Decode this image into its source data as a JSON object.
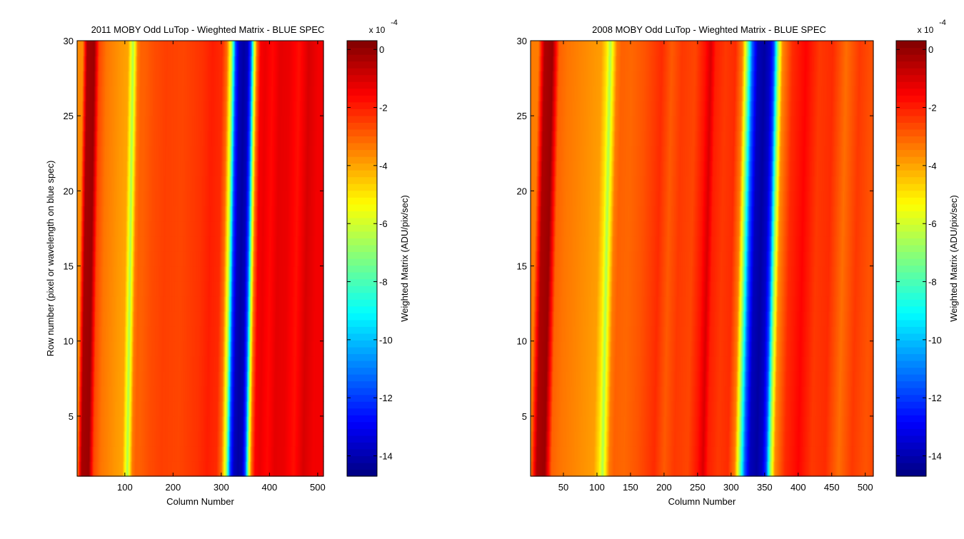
{
  "chart_data": [
    {
      "type": "heatmap",
      "title": "2011 MOBY Odd LuTop - Wieghted Matrix - BLUE SPEC",
      "xlabel": "Column Number",
      "ylabel": "Row number (pixel or wavelength on blue spec)",
      "xlim": [
        1,
        512
      ],
      "ylim": [
        1,
        30
      ],
      "xticks": [
        100,
        200,
        300,
        400,
        500
      ],
      "yticks": [
        5,
        10,
        15,
        20,
        25,
        30
      ],
      "colorbar": {
        "label": "Weighted Matrix (ADU/pix/sec)",
        "multiplier": "x 10",
        "exponent": "-4",
        "ticks": [
          0,
          -2,
          -4,
          -6,
          -8,
          -10,
          -12,
          -14
        ],
        "range": [
          -14.7,
          0.3
        ],
        "colormap": "jet"
      },
      "profile_x": [
        1,
        10,
        25,
        35,
        50,
        80,
        95,
        100,
        105,
        110,
        115,
        122,
        130,
        150,
        175,
        210,
        250,
        270,
        290,
        300,
        310,
        318,
        326,
        335,
        343,
        350,
        356,
        362,
        370,
        380,
        395,
        410,
        430,
        450,
        470,
        490,
        512
      ],
      "profile_values": [
        -3.6,
        -0.3,
        -0.1,
        -2.6,
        -3.3,
        -3.8,
        -4.0,
        -5.2,
        -6.6,
        -5.0,
        -3.4,
        -3.0,
        -3.0,
        -2.7,
        -2.5,
        -2.6,
        -2.3,
        -2.0,
        -2.2,
        -3.2,
        -6.5,
        -11.8,
        -13.8,
        -14.2,
        -13.8,
        -11.5,
        -6.5,
        -3.2,
        -1.5,
        -1.3,
        -1.7,
        -1.2,
        -1.3,
        -1.8,
        -1.0,
        -1.4,
        -1.4
      ],
      "skew_columns_over_rows": 12
    },
    {
      "type": "heatmap",
      "title": "2008 MOBY Odd LuTop - Wieghted Matrix - BLUE SPEC",
      "xlabel": "Column Number",
      "ylabel": "",
      "xlim": [
        1,
        512
      ],
      "ylim": [
        1,
        30
      ],
      "xticks": [
        50,
        100,
        150,
        200,
        250,
        300,
        350,
        400,
        450,
        500
      ],
      "yticks": [
        5,
        10,
        15,
        20,
        25,
        30
      ],
      "colorbar": {
        "label": "Weighted Matrix (ADU/pix/sec)",
        "multiplier": "x 10",
        "exponent": "-4",
        "ticks": [
          0,
          -2,
          -4,
          -6,
          -8,
          -10,
          -12,
          -14
        ],
        "range": [
          -14.7,
          0.3
        ],
        "colormap": "jet"
      },
      "profile_x": [
        1,
        10,
        22,
        32,
        45,
        70,
        95,
        103,
        108,
        112,
        118,
        125,
        140,
        160,
        185,
        200,
        215,
        235,
        250,
        258,
        265,
        280,
        295,
        305,
        312,
        320,
        328,
        338,
        346,
        352,
        358,
        365,
        380,
        400,
        420,
        440,
        460,
        480,
        500,
        512
      ],
      "profile_values": [
        -3.4,
        -0.4,
        -0.1,
        -3.0,
        -3.3,
        -3.6,
        -3.9,
        -5.0,
        -6.6,
        -5.2,
        -3.4,
        -3.0,
        -3.1,
        -2.8,
        -2.2,
        -2.9,
        -2.4,
        -2.6,
        -1.8,
        -1.0,
        -2.0,
        -2.4,
        -2.2,
        -3.4,
        -6.8,
        -11.5,
        -13.8,
        -14.2,
        -13.6,
        -11.8,
        -7.0,
        -3.6,
        -2.2,
        -1.6,
        -2.4,
        -2.2,
        -3.2,
        -2.4,
        -2.8,
        -2.6
      ],
      "skew_columns_over_rows": 12
    }
  ]
}
